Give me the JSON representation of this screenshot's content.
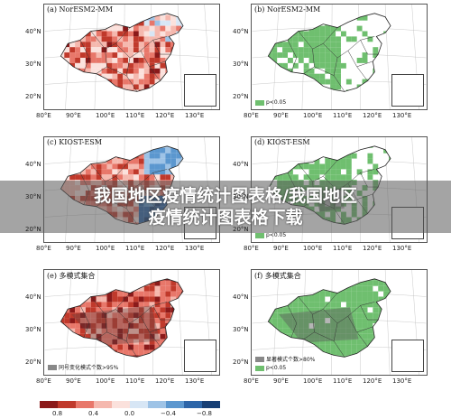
{
  "panels": [
    {
      "id": "a",
      "label": "(a) NorESM2-MM",
      "kind": "values"
    },
    {
      "id": "b",
      "label": "(b) NorESM2-MM",
      "kind": "significance",
      "legend": [
        {
          "text": "p<0.05",
          "color": "#6fbf6f"
        }
      ]
    },
    {
      "id": "c",
      "label": "(c) KIOST-ESM",
      "kind": "values"
    },
    {
      "id": "d",
      "label": "(d) KIOST-ESM",
      "kind": "significance",
      "legend": [
        {
          "text": "p<0.05",
          "color": "#6fbf6f"
        }
      ]
    },
    {
      "id": "e",
      "label": "(e) 多模式集合",
      "kind": "values",
      "legend": [
        {
          "text": "同号变化模式个数>95%",
          "color": "#888888"
        }
      ]
    },
    {
      "id": "f",
      "label": "(f) 多模式集合",
      "kind": "significance",
      "legend": [
        {
          "text": "显著模式个数>80%",
          "color": "#888888"
        },
        {
          "text": "p<0.05",
          "color": "#6fbf6f"
        }
      ]
    }
  ],
  "y_ticks": [
    "40°N",
    "30°N",
    "20°N"
  ],
  "x_ticks": [
    "80°E",
    "90°E",
    "100°E",
    "110°E",
    "120°E",
    "130°E"
  ],
  "overlay": {
    "line1": "我国地区疫情统计图表格/我国地区",
    "line2": "疫情统计图表格下载"
  },
  "colorbar": {
    "colors": [
      "#8b1a1a",
      "#c0392b",
      "#e8776a",
      "#f5b8ae",
      "#fbe1dc",
      "#d7e6f5",
      "#9ec3e6",
      "#5b97cf",
      "#2c65a8",
      "#173f75"
    ],
    "ticks": [
      "0.8",
      "0.4",
      "0.0",
      "−0.4",
      "−0.8"
    ]
  },
  "colors": {
    "sig_green": "#6fbf6f",
    "agree_gray": "#888888"
  }
}
